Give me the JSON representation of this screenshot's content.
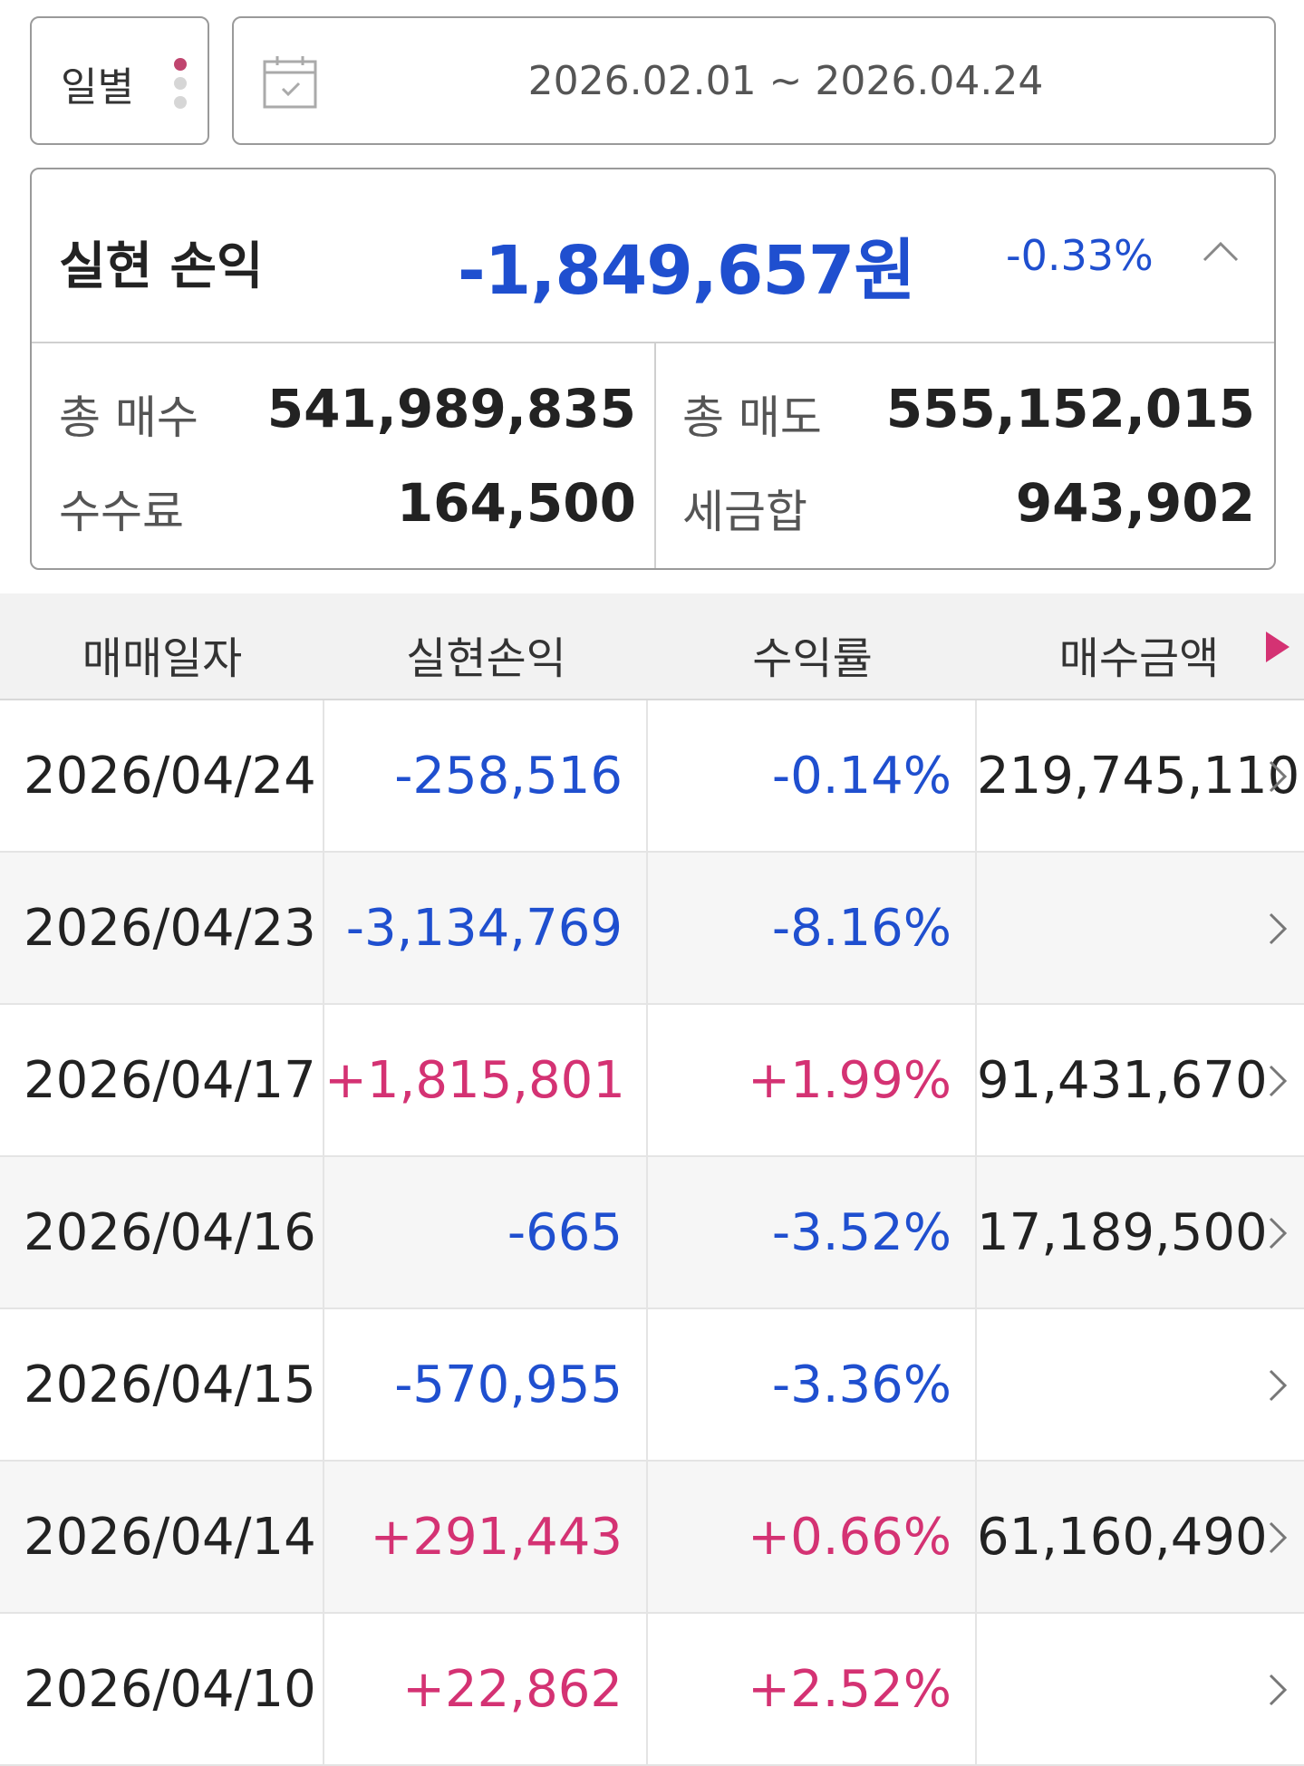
{
  "filter": {
    "period_label": "일별",
    "date_range": "2026.02.01 ~ 2026.04.24"
  },
  "summary": {
    "title": "실현 손익",
    "amount": "-1,849,657원",
    "rate": "-0.33%",
    "total_buy_label": "총 매수",
    "total_buy_value": "541,989,835",
    "total_sell_label": "총 매도",
    "total_sell_value": "555,152,015",
    "fee_label": "수수료",
    "fee_value": "164,500",
    "tax_label": "세금합",
    "tax_value": "943,902"
  },
  "table": {
    "headers": {
      "date": "매매일자",
      "pl": "실현손익",
      "rate": "수익률",
      "buy_amount": "매수금액"
    },
    "rows": [
      {
        "date": "2026/04/24",
        "pl": "-258,516",
        "rate": "-0.14%",
        "buy_amount": "219,745,110",
        "sign": "neg"
      },
      {
        "date": "2026/04/23",
        "pl": "-3,134,769",
        "rate": "-8.16%",
        "buy_amount": "",
        "sign": "neg"
      },
      {
        "date": "2026/04/17",
        "pl": "+1,815,801",
        "rate": "+1.99%",
        "buy_amount": "91,431,670",
        "sign": "pos"
      },
      {
        "date": "2026/04/16",
        "pl": "-665",
        "rate": "-3.52%",
        "buy_amount": "17,189,500",
        "sign": "neg"
      },
      {
        "date": "2026/04/15",
        "pl": "-570,955",
        "rate": "-3.36%",
        "buy_amount": "",
        "sign": "neg"
      },
      {
        "date": "2026/04/14",
        "pl": "+291,443",
        "rate": "+0.66%",
        "buy_amount": "61,160,490",
        "sign": "pos"
      },
      {
        "date": "2026/04/10",
        "pl": "+22,862",
        "rate": "+2.52%",
        "buy_amount": "",
        "sign": "pos"
      }
    ]
  },
  "colors": {
    "negative": "#1f4fcf",
    "positive": "#d43273",
    "accent": "#c0456f"
  }
}
